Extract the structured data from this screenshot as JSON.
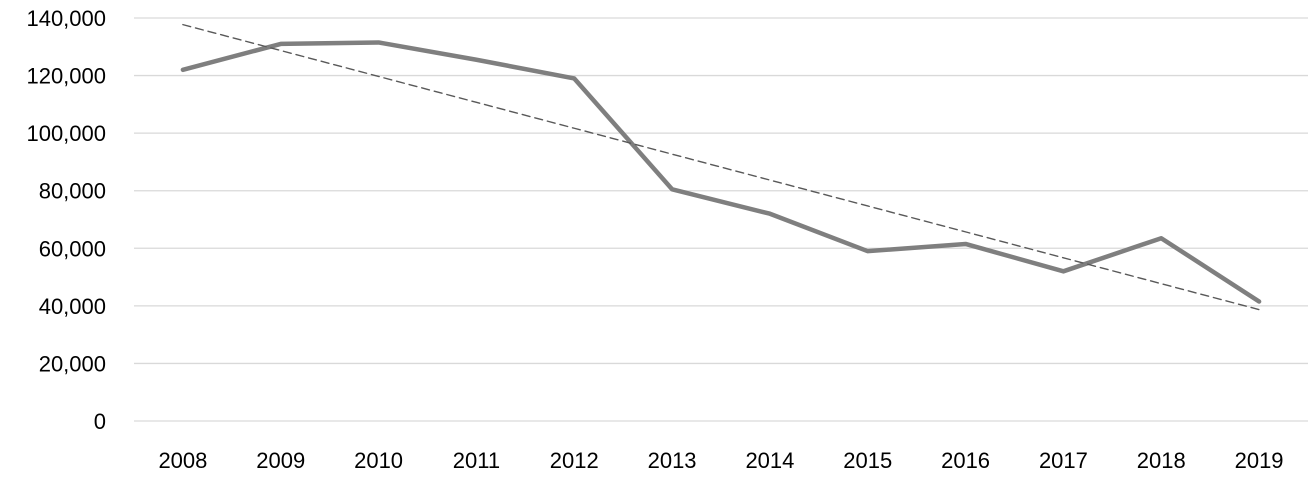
{
  "chart_data": {
    "type": "line",
    "title": "",
    "xlabel": "",
    "ylabel": "",
    "ylim": [
      0,
      140000
    ],
    "grid": true,
    "categories": [
      "2008",
      "2009",
      "2010",
      "2011",
      "2012",
      "2013",
      "2014",
      "2015",
      "2016",
      "2017",
      "2018",
      "2019"
    ],
    "yticks": [
      0,
      20000,
      40000,
      60000,
      80000,
      100000,
      120000,
      140000
    ],
    "ytick_labels": [
      "0",
      "20,000",
      "40,000",
      "60,000",
      "80,000",
      "100,000",
      "120,000",
      "140,000"
    ],
    "series": [
      {
        "name": "values",
        "style": "solid",
        "color": "#7f7f7f",
        "values": [
          122000,
          131000,
          131500,
          125500,
          119000,
          80500,
          72000,
          59000,
          61500,
          52000,
          63500,
          41500
        ]
      },
      {
        "name": "trend",
        "style": "dashed",
        "color": "#595959",
        "values": [
          137700,
          128700,
          119700,
          110700,
          101700,
          92700,
          83700,
          74700,
          65700,
          56700,
          47700,
          38700
        ]
      }
    ]
  }
}
